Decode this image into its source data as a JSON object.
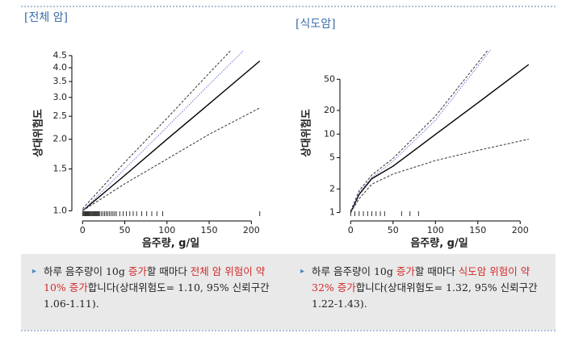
{
  "chart_data": [
    {
      "type": "line",
      "title": "[전체 암]",
      "ylabel": "상대위험도",
      "xlabel": "음주량, g/일",
      "log_y": true,
      "xlim": [
        -6,
        215
      ],
      "ylim": [
        0.95,
        4.75
      ],
      "xticks": [
        0,
        50,
        100,
        150,
        200
      ],
      "yticks": [
        {
          "value": 1,
          "label": "1.0"
        },
        1.5,
        {
          "value": 2,
          "label": "2.0"
        },
        2.5,
        {
          "value": 3,
          "label": "3.0"
        },
        3.5,
        {
          "value": 4,
          "label": "4.0"
        },
        4.5
      ],
      "series": [
        {
          "color": "#000000",
          "style": "solid",
          "x": [
            0,
            50,
            100,
            150,
            210
          ],
          "values": [
            1.0,
            1.41,
            2.0,
            2.82,
            4.27
          ]
        },
        {
          "color": "#333333",
          "style": "dashed",
          "x": [
            0,
            50,
            100,
            150,
            175
          ],
          "values": [
            1.02,
            1.6,
            2.45,
            3.8,
            4.7
          ]
        },
        {
          "color": "#6a78d8",
          "style": "dotted",
          "x": [
            0,
            50,
            100,
            150,
            190
          ],
          "values": [
            1.0,
            1.5,
            2.25,
            3.4,
            4.7
          ]
        },
        {
          "color": "#333333",
          "style": "dashed",
          "x": [
            0,
            50,
            100,
            150,
            210
          ],
          "values": [
            1.0,
            1.3,
            1.65,
            2.1,
            2.71
          ]
        }
      ],
      "rug": [
        0,
        1,
        2,
        3,
        4,
        5,
        6,
        7,
        8,
        9,
        10,
        11,
        12,
        13,
        14,
        15,
        16,
        17,
        18,
        19,
        20,
        22,
        24,
        26,
        28,
        30,
        32,
        34,
        36,
        38,
        40,
        44,
        48,
        52,
        56,
        60,
        64,
        70,
        76,
        82,
        88,
        95,
        210
      ]
    },
    {
      "type": "line",
      "title": "[식도암]",
      "ylabel": "상대위험도",
      "xlabel": "음주량, g/일",
      "log_y": true,
      "xlim": [
        -6,
        215
      ],
      "ylim": [
        0.9,
        118
      ],
      "xticks": [
        0,
        50,
        100,
        150,
        200
      ],
      "yticks": [
        1,
        2,
        5,
        10,
        20,
        50
      ],
      "series": [
        {
          "color": "#000000",
          "style": "solid",
          "x": [
            0,
            10,
            25,
            50,
            100,
            150,
            210
          ],
          "values": [
            1.0,
            1.7,
            2.7,
            3.9,
            9.9,
            25,
            77
          ]
        },
        {
          "color": "#333333",
          "style": "dashed",
          "x": [
            0,
            10,
            25,
            50,
            100,
            162
          ],
          "values": [
            1.05,
            1.9,
            3.0,
            4.9,
            17,
            118
          ]
        },
        {
          "color": "#6a78d8",
          "style": "dotted",
          "x": [
            0,
            10,
            25,
            50,
            100,
            165
          ],
          "values": [
            1.0,
            1.8,
            2.8,
            4.5,
            15,
            118
          ]
        },
        {
          "color": "#333333",
          "style": "dashed",
          "x": [
            0,
            10,
            25,
            50,
            100,
            150,
            210
          ],
          "values": [
            1.0,
            1.5,
            2.3,
            3.1,
            4.6,
            6.2,
            8.6
          ]
        }
      ],
      "rug": [
        0,
        5,
        10,
        15,
        20,
        25,
        30,
        35,
        40,
        60,
        70,
        80
      ]
    }
  ],
  "notes": [
    {
      "segments": [
        {
          "text": "하루 음주량이 10g ",
          "color": "#222222"
        },
        {
          "text": "증가",
          "color": "#d42a2a"
        },
        {
          "text": "할 때마다 ",
          "color": "#222222"
        },
        {
          "text": "전체 암 위험이 약 10% 증가",
          "color": "#d42a2a"
        },
        {
          "text": "합니다(상대위험도= 1.10, 95% 신뢰구간 1.06-1.11).",
          "color": "#222222"
        }
      ]
    },
    {
      "segments": [
        {
          "text": "하루 음주량이 10g ",
          "color": "#222222"
        },
        {
          "text": "증가",
          "color": "#d42a2a"
        },
        {
          "text": "할 때마다 ",
          "color": "#222222"
        },
        {
          "text": "식도암 위험이 약 32% 증가",
          "color": "#d42a2a"
        },
        {
          "text": "합니다(상대위험도= 1.32, 95% 신뢰구간 1.22-1.43).",
          "color": "#222222"
        }
      ]
    }
  ]
}
